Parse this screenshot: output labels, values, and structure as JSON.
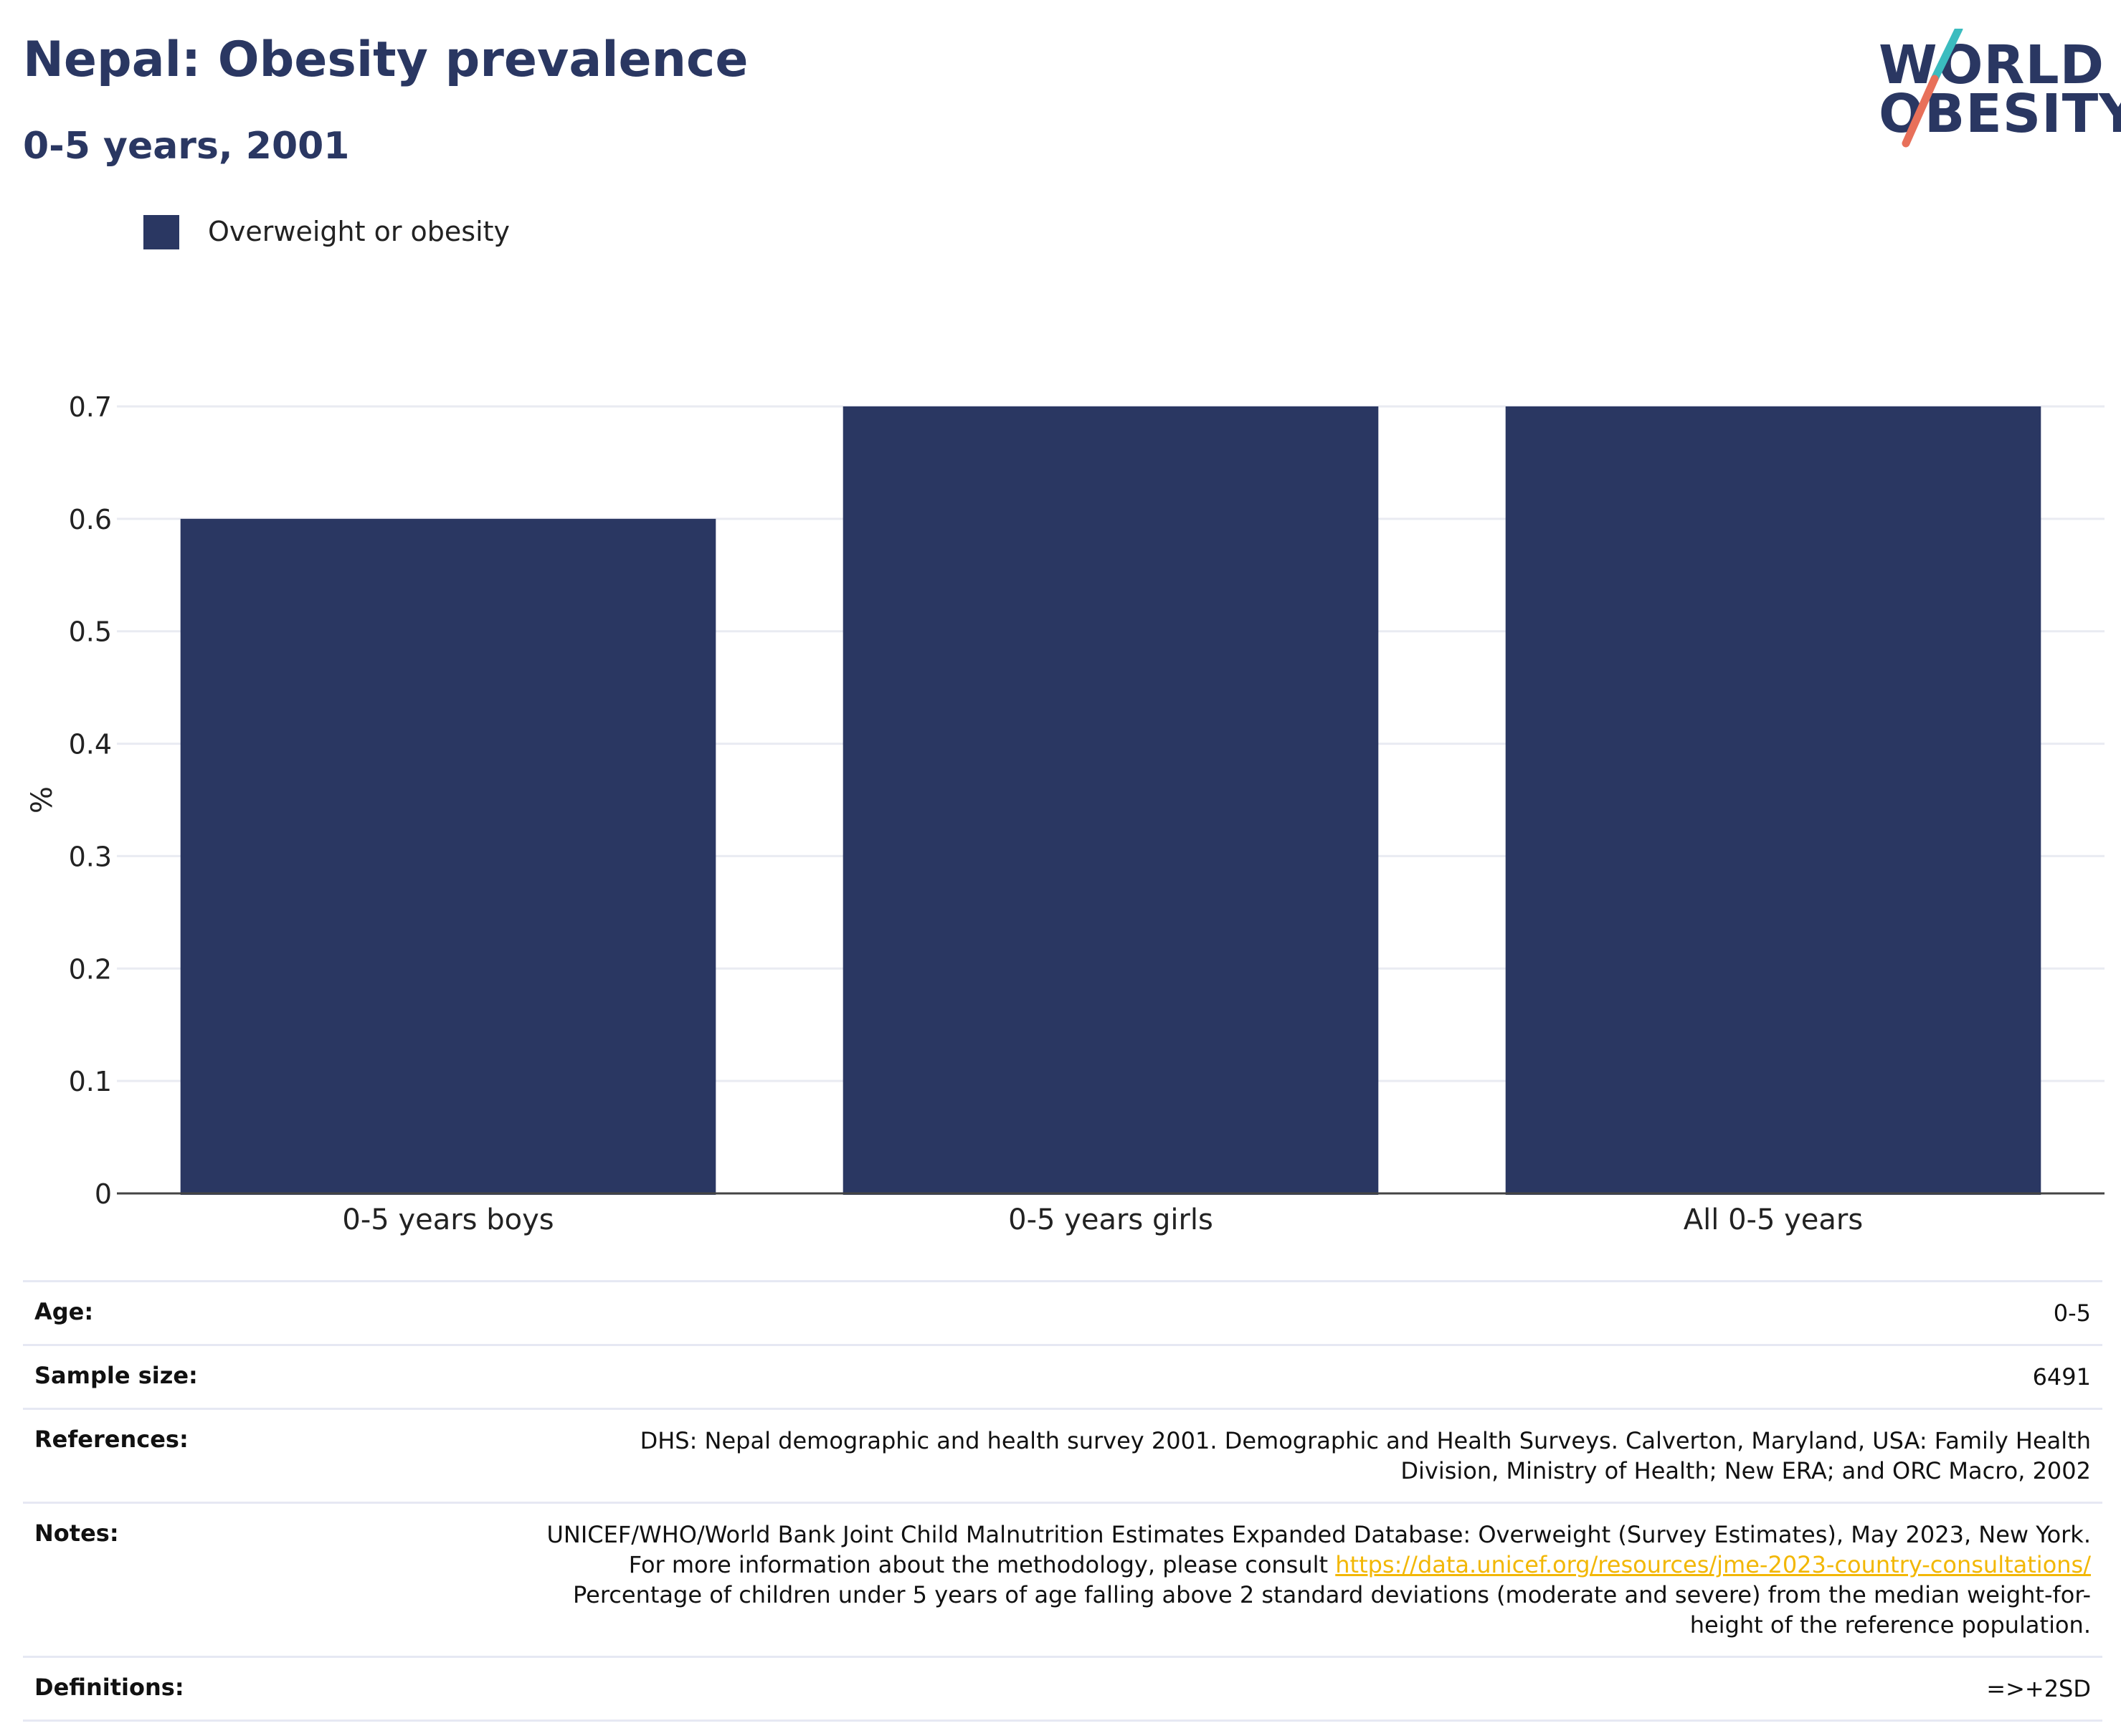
{
  "header": {
    "title": "Nepal: Obesity prevalence",
    "subtitle": "0-5 years, 2001"
  },
  "logo": {
    "text": "WORLD OBESITY",
    "line1": "WORLD",
    "line2": "OBESITY",
    "colors": {
      "navy": "#2a3762",
      "teal": "#3bbcbf",
      "coral": "#e8705a"
    }
  },
  "legend": {
    "label": "Overweight or obesity",
    "color": "#2a3762"
  },
  "chart_data": {
    "type": "bar",
    "categories": [
      "0-5 years boys",
      "0-5 years girls",
      "All 0-5 years"
    ],
    "series": [
      {
        "name": "Overweight or obesity",
        "values": [
          0.6,
          0.7,
          0.7
        ],
        "color": "#2a3762"
      }
    ],
    "ylabel": "%",
    "ylim": [
      0,
      0.7
    ],
    "yticks": [
      "0",
      "0.1",
      "0.2",
      "0.3",
      "0.4",
      "0.5",
      "0.6",
      "0.7"
    ],
    "grid": true
  },
  "info": {
    "age_label": "Age:",
    "age_value": "0-5",
    "sample_label": "Sample size:",
    "sample_value": "6491",
    "references_label": "References:",
    "references_value": "DHS: Nepal demographic and health survey 2001. Demographic and Health Surveys. Calverton, Maryland, USA: Family Health Division, Ministry of Health; New ERA; and ORC Macro, 2002",
    "notes_label": "Notes:",
    "notes_text_1": "UNICEF/WHO/World Bank Joint Child Malnutrition Estimates Expanded Database: Overweight (Survey Estimates), May 2023, New York. For more information about the methodology, please consult",
    "notes_link": "https://data.unicef.org/resources/jme-2023-country-consultations/",
    "notes_text_2": "Percentage of children under 5 years of age falling above 2 standard deviations (moderate and severe) from the median weight-for-height of the reference population.",
    "definitions_label": "Definitions:",
    "definitions_value": "=>+2SD"
  }
}
